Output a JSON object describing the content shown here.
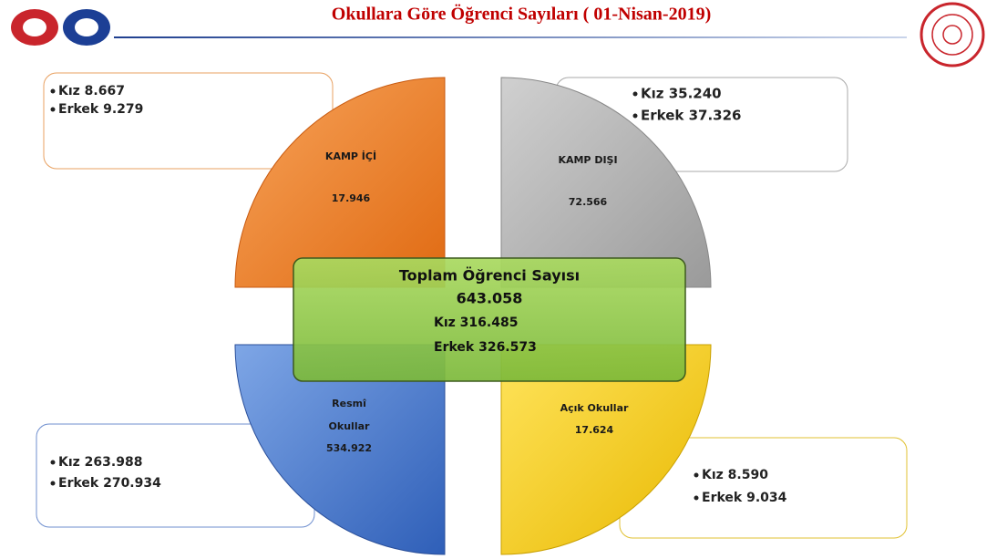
{
  "title": "Okullara Göre Öğrenci Sayıları ( 01-Nisan-2019)",
  "quadrants": [
    {
      "label": [
        "KAMP İÇİ"
      ],
      "total": "17.946",
      "details": [
        "Kız 8.667",
        "Erkek 9.279"
      ]
    },
    {
      "label": [
        "KAMP DIŞI"
      ],
      "total": "72.566",
      "details": [
        "Kız  35.240",
        "Erkek 37.326"
      ]
    },
    {
      "label": [
        "Resmî",
        "Okullar"
      ],
      "total": "534.922",
      "details": [
        "Kız 263.988",
        "Erkek 270.934"
      ]
    },
    {
      "label": [
        "Açık Okullar"
      ],
      "total": "17.624",
      "details": [
        "Kız 8.590",
        "Erkek 9.034"
      ]
    }
  ],
  "center": {
    "title": "Toplam Öğrenci Sayısı",
    "total": "643.058",
    "lines": [
      "Kız 316.485",
      "Erkek 326.573"
    ]
  }
}
